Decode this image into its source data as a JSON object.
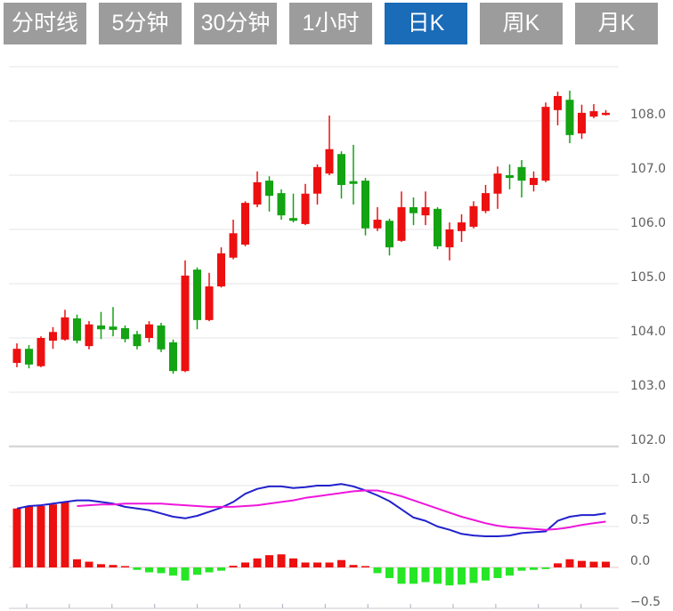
{
  "tabs": {
    "items": [
      {
        "label": "分时线"
      },
      {
        "label": "5分钟"
      },
      {
        "label": "30分钟"
      },
      {
        "label": "1小时"
      },
      {
        "label": "日K"
      },
      {
        "label": "周K"
      },
      {
        "label": "月K"
      }
    ],
    "selected_index": 4,
    "selected_label": "日K"
  },
  "colors": {
    "tab_bg": "#9c9c9c",
    "tab_active_bg": "#1a6bb8",
    "tab_text": "#ffffff",
    "up_candle": "#ec1010",
    "down_candle": "#13a313",
    "hist_up": "#ec1010",
    "hist_down": "#26e626",
    "dif_line": "#2121cc",
    "dea_line": "#ee16dc",
    "grid": "#e6e6e6",
    "panel_separator": "#d8d8d8",
    "zero_line": "#e3c6c6",
    "bottom_axis": "#c9c9c9",
    "axis_tick": "#a9aec2",
    "axis_text": "#606060"
  },
  "chart_data": [
    {
      "type": "candlestick",
      "period": "日K",
      "y_axis_labels": [
        "108.0",
        "107.0",
        "106.0",
        "105.0",
        "104.0",
        "103.0",
        "102.0"
      ],
      "y_axis_values": [
        108,
        107,
        106,
        105,
        104,
        103,
        102
      ],
      "ylim": [
        102.0,
        109.0
      ],
      "grid": true,
      "legend": "none",
      "candles_ohlc_note": "each candle is [open, close, high, low]; close>=open drawn red (up), close<open drawn green (down)",
      "candles": [
        [
          103.54,
          103.8,
          103.9,
          103.46
        ],
        [
          103.8,
          103.51,
          103.87,
          103.44
        ],
        [
          103.48,
          104.0,
          104.03,
          103.46
        ],
        [
          103.95,
          104.11,
          104.2,
          103.8
        ],
        [
          103.97,
          104.38,
          104.52,
          103.95
        ],
        [
          104.36,
          103.95,
          104.43,
          103.9
        ],
        [
          103.85,
          104.25,
          104.31,
          103.79
        ],
        [
          104.23,
          104.16,
          104.48,
          103.98
        ],
        [
          104.21,
          104.15,
          104.57,
          104.03
        ],
        [
          104.18,
          103.98,
          104.23,
          103.92
        ],
        [
          104.07,
          103.85,
          104.13,
          103.79
        ],
        [
          104.0,
          104.25,
          104.31,
          103.92
        ],
        [
          104.23,
          103.79,
          104.28,
          103.74
        ],
        [
          103.92,
          103.39,
          103.97,
          103.34
        ],
        [
          103.39,
          105.15,
          105.43,
          103.37
        ],
        [
          105.26,
          104.33,
          105.3,
          104.16
        ],
        [
          104.33,
          104.95,
          105.2,
          104.31
        ],
        [
          104.95,
          105.56,
          105.67,
          104.93
        ],
        [
          105.48,
          105.93,
          106.18,
          105.45
        ],
        [
          105.72,
          106.49,
          106.52,
          105.69
        ],
        [
          106.46,
          106.87,
          107.07,
          106.41
        ],
        [
          106.9,
          106.62,
          106.98,
          106.33
        ],
        [
          106.67,
          106.26,
          106.74,
          106.18
        ],
        [
          106.21,
          106.16,
          106.66,
          106.13
        ],
        [
          106.1,
          106.66,
          106.84,
          106.08
        ],
        [
          106.66,
          107.15,
          107.2,
          106.46
        ],
        [
          107.03,
          107.48,
          108.1,
          107.0
        ],
        [
          107.39,
          106.82,
          107.44,
          106.57
        ],
        [
          106.89,
          106.84,
          107.56,
          106.46
        ],
        [
          106.9,
          106.02,
          106.95,
          105.89
        ],
        [
          106.02,
          106.18,
          106.41,
          105.97
        ],
        [
          106.16,
          105.67,
          106.2,
          105.52
        ],
        [
          105.79,
          106.41,
          106.7,
          105.77
        ],
        [
          106.41,
          106.3,
          106.59,
          106.08
        ],
        [
          106.26,
          106.41,
          106.7,
          106.08
        ],
        [
          106.38,
          105.69,
          106.41,
          105.64
        ],
        [
          105.67,
          106.0,
          106.13,
          105.43
        ],
        [
          105.97,
          106.13,
          106.28,
          105.77
        ],
        [
          106.05,
          106.43,
          106.52,
          106.02
        ],
        [
          106.34,
          106.67,
          106.82,
          106.3
        ],
        [
          106.66,
          107.03,
          107.16,
          106.38
        ],
        [
          107.0,
          106.95,
          107.2,
          106.74
        ],
        [
          107.15,
          106.9,
          107.28,
          106.59
        ],
        [
          106.82,
          106.95,
          107.07,
          106.7
        ],
        [
          106.9,
          108.26,
          108.34,
          106.87
        ],
        [
          108.2,
          108.46,
          108.54,
          107.92
        ],
        [
          108.39,
          107.74,
          108.56,
          107.59
        ],
        [
          107.77,
          108.15,
          108.3,
          107.67
        ],
        [
          108.08,
          108.18,
          108.31,
          108.05
        ],
        [
          108.11,
          108.15,
          108.2,
          108.1
        ]
      ]
    },
    {
      "type": "macd",
      "y_axis_labels": [
        "1.0",
        "0.5",
        "0.0",
        "−0.5"
      ],
      "y_axis_values": [
        1.0,
        0.5,
        0.0,
        -0.5
      ],
      "ylim": [
        -0.55,
        1.1
      ],
      "grid": true,
      "x_tick_count": 14,
      "series": [
        {
          "name": "DIF",
          "type": "line",
          "values": [
            0.72,
            0.75,
            0.76,
            0.78,
            0.8,
            0.82,
            0.82,
            0.8,
            0.78,
            0.74,
            0.72,
            0.7,
            0.66,
            0.62,
            0.6,
            0.63,
            0.68,
            0.73,
            0.8,
            0.9,
            0.96,
            0.99,
            0.99,
            0.97,
            0.98,
            1.0,
            1.0,
            1.02,
            0.99,
            0.94,
            0.88,
            0.81,
            0.71,
            0.61,
            0.57,
            0.5,
            0.46,
            0.41,
            0.39,
            0.38,
            0.38,
            0.39,
            0.42,
            0.43,
            0.44,
            0.57,
            0.62,
            0.64,
            0.64,
            0.66
          ]
        },
        {
          "name": "DEA",
          "type": "line",
          "values": [
            null,
            null,
            null,
            null,
            null,
            0.75,
            0.76,
            0.77,
            0.77,
            0.78,
            0.78,
            0.78,
            0.78,
            0.77,
            0.76,
            0.75,
            0.74,
            0.74,
            0.74,
            0.75,
            0.76,
            0.78,
            0.8,
            0.82,
            0.85,
            0.87,
            0.89,
            0.91,
            0.93,
            0.94,
            0.94,
            0.91,
            0.87,
            0.82,
            0.77,
            0.72,
            0.67,
            0.62,
            0.58,
            0.54,
            0.51,
            0.49,
            0.48,
            0.47,
            0.46,
            0.47,
            0.49,
            0.52,
            0.54,
            0.56
          ]
        },
        {
          "name": "MACD",
          "type": "bar",
          "values": [
            0.72,
            0.75,
            0.75,
            0.77,
            0.8,
            0.1,
            0.07,
            0.04,
            0.03,
            0.01,
            -0.03,
            -0.06,
            -0.07,
            -0.1,
            -0.16,
            -0.09,
            -0.06,
            -0.04,
            0.02,
            0.06,
            0.11,
            0.15,
            0.16,
            0.11,
            0.06,
            0.06,
            0.06,
            0.09,
            0.03,
            0.01,
            -0.07,
            -0.13,
            -0.2,
            -0.2,
            -0.18,
            -0.2,
            -0.22,
            -0.21,
            -0.19,
            -0.16,
            -0.13,
            -0.1,
            -0.04,
            -0.03,
            -0.02,
            0.05,
            0.1,
            0.08,
            0.07,
            0.07
          ]
        }
      ]
    }
  ]
}
